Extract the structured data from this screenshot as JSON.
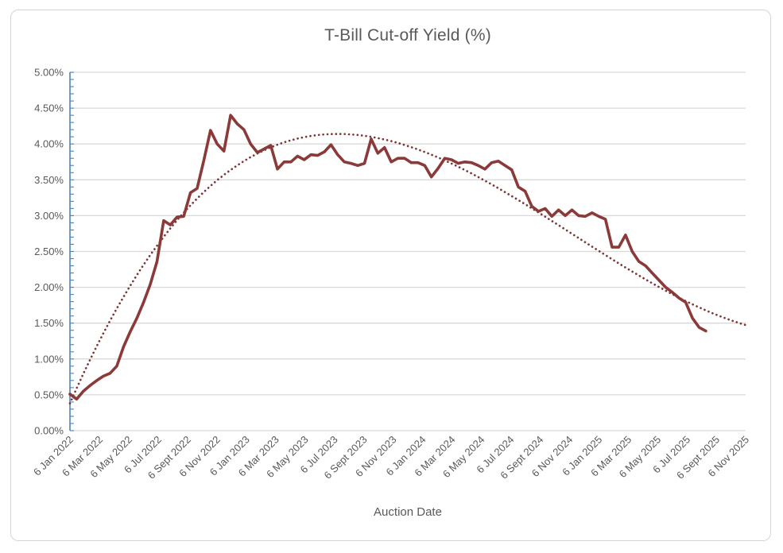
{
  "chart_data": {
    "type": "line",
    "title": "T-Bill Cut-off Yield (%)",
    "xlabel": "Auction Date",
    "ylabel": "",
    "ylim": [
      0,
      5
    ],
    "y_tick_step": 0.5,
    "y_minor_tick_step": 0.1,
    "grid": "horizontal-only",
    "legend": "none",
    "y_tick_labels": [
      "0.00%",
      "0.50%",
      "1.00%",
      "1.50%",
      "2.00%",
      "2.50%",
      "3.00%",
      "3.50%",
      "4.00%",
      "4.50%",
      "5.00%"
    ],
    "x_tick_labels": [
      "6 Jan 2022",
      "6 Mar 2022",
      "6 May 2022",
      "6 Jul 2022",
      "6 Sept 2022",
      "6 Nov 2022",
      "6 Jan 2023",
      "6 Mar 2023",
      "6 May 2023",
      "6 Jul 2023",
      "6 Sept 2023",
      "6 Nov 2023",
      "6 Jan 2024",
      "6 Mar 2024",
      "6 May 2024",
      "6 Jul 2024",
      "6 Sept 2024",
      "6 Nov 2024",
      "6 Jan 2025",
      "6 Mar 2025",
      "6 May 2025",
      "6 Jul 2025",
      "6 Sept 2025",
      "6 Nov 2025"
    ],
    "series": [
      {
        "name": "T-Bill cut-off yield",
        "style": "solid",
        "color": "#8B3A3A",
        "points_description": "consecutive biweekly auctions starting 6 Jan 2022",
        "values": [
          0.51,
          0.44,
          0.55,
          0.63,
          0.7,
          0.76,
          0.8,
          0.9,
          1.17,
          1.38,
          1.57,
          1.79,
          2.04,
          2.36,
          2.93,
          2.87,
          2.98,
          2.99,
          3.32,
          3.38,
          3.77,
          4.19,
          4.0,
          3.9,
          4.4,
          4.28,
          4.2,
          4.0,
          3.88,
          3.93,
          3.98,
          3.65,
          3.75,
          3.75,
          3.83,
          3.78,
          3.85,
          3.84,
          3.89,
          3.99,
          3.85,
          3.75,
          3.73,
          3.7,
          3.73,
          4.07,
          3.87,
          3.95,
          3.75,
          3.8,
          3.8,
          3.74,
          3.74,
          3.7,
          3.54,
          3.66,
          3.8,
          3.78,
          3.73,
          3.75,
          3.74,
          3.7,
          3.65,
          3.74,
          3.76,
          3.7,
          3.64,
          3.4,
          3.34,
          3.13,
          3.06,
          3.1,
          2.99,
          3.08,
          3.0,
          3.08,
          3.0,
          2.99,
          3.04,
          2.99,
          2.95,
          2.56,
          2.56,
          2.73,
          2.5,
          2.36,
          2.3,
          2.2,
          2.1,
          2.0,
          1.93,
          1.85,
          1.79,
          1.57,
          1.44,
          1.39
        ]
      },
      {
        "name": "Polynomial trendline",
        "style": "dotted",
        "color": "#7E3434",
        "cubic_over_point_index": {
          "a": 0.38,
          "b": 0.21387,
          "c": -0.0036433,
          "d": 1.6167e-05
        },
        "end_index": 101,
        "peak_value": 4.14,
        "end_value": 1.5
      }
    ],
    "colors": {
      "y_axis": "#4E81BD",
      "gridline": "#D9D9D9",
      "label_text": "#595959",
      "chart_border": "#D5D5D5"
    }
  }
}
